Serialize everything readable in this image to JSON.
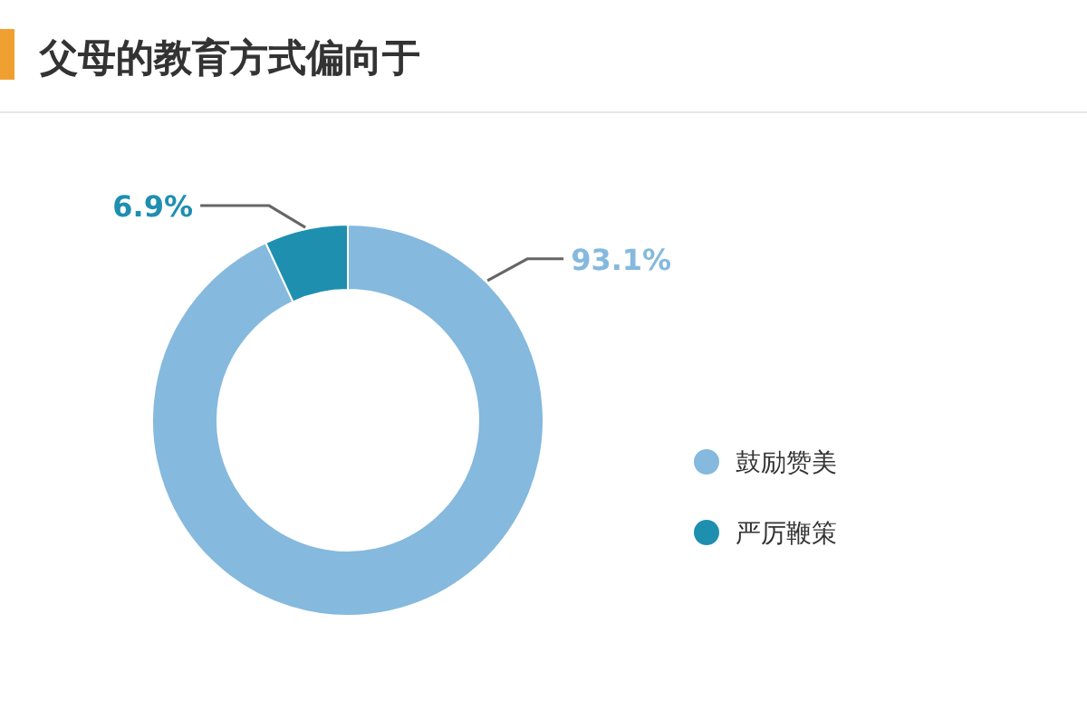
{
  "chart_data": {
    "type": "donut",
    "title": "父母的教育方式偏向于",
    "categories": [
      "鼓励赞美",
      "严厉鞭策"
    ],
    "values": [
      93.1,
      6.9
    ],
    "colors": [
      "#85b9de",
      "#1f8fb0"
    ],
    "value_labels": [
      "93.1%",
      "6.9%"
    ],
    "legend": "right"
  }
}
